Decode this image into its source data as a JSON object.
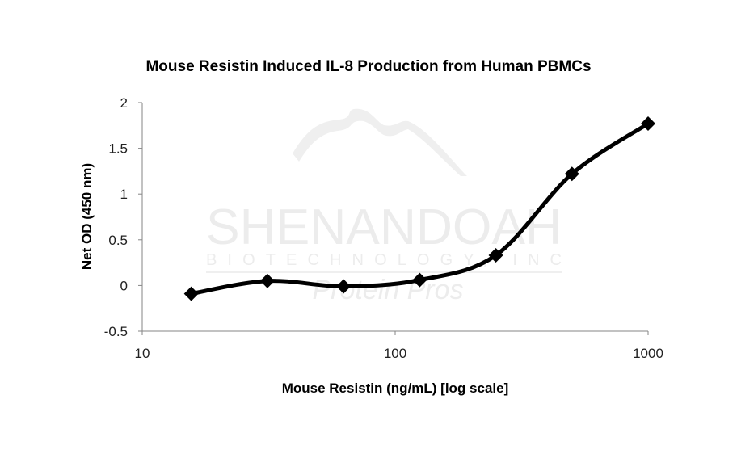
{
  "chart_data": {
    "type": "line",
    "title": "Mouse Resistin Induced IL-8 Production from Human PBMCs",
    "xlabel": "Mouse Resistin (ng/mL) [log scale]",
    "ylabel": "Net OD (450 nm)",
    "x_scale": "log",
    "xlim": [
      10,
      1000
    ],
    "ylim": [
      -0.5,
      2
    ],
    "x_ticks": [
      "10",
      "100",
      "1000"
    ],
    "y_ticks": [
      "2",
      "1.5",
      "1",
      "0.5",
      "0",
      "-0.5"
    ],
    "grid": false,
    "legend": null,
    "marker": "diamond",
    "line_style": "smoothed",
    "series": [
      {
        "name": "Net OD",
        "color": "#000000",
        "x": [
          15.625,
          31.25,
          62.5,
          125,
          250,
          500,
          1000
        ],
        "values": [
          -0.09,
          0.05,
          -0.01,
          0.06,
          0.33,
          1.22,
          1.77
        ]
      }
    ]
  },
  "watermark": {
    "line1": "SHENANDOAH",
    "line2": "BIOTECHNOLOGY, INC",
    "line3": "Protein Pros"
  }
}
